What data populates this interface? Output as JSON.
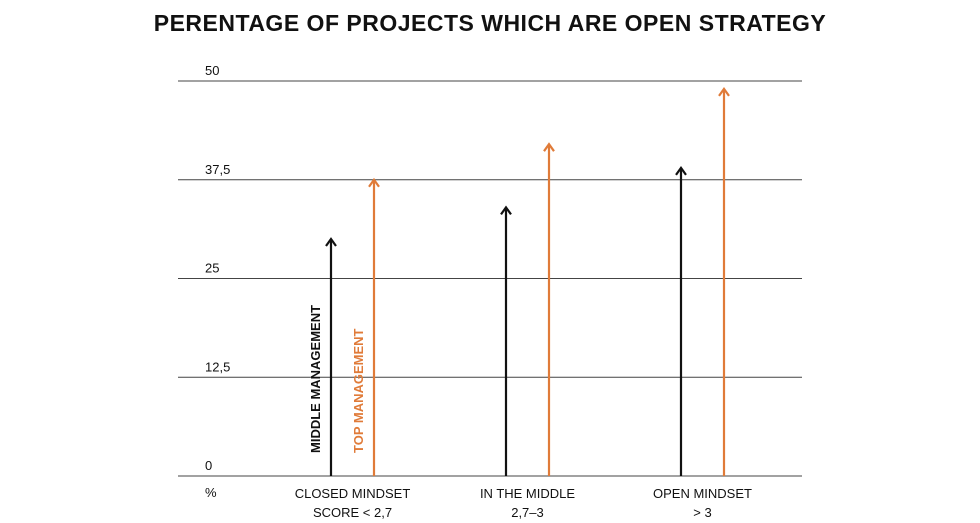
{
  "chart_data": {
    "type": "bar",
    "title": "PERENTAGE OF PROJECTS WHICH ARE OPEN STRATEGY",
    "y_unit_label": "%",
    "ylim": [
      0,
      50
    ],
    "yticks": [
      0,
      12.5,
      25,
      37.5,
      50
    ],
    "ytick_labels": [
      "0",
      "12,5",
      "25",
      "37,5",
      "50"
    ],
    "grid": true,
    "categories": [
      [
        "CLOSED MINDSET",
        "SCORE < 2,7"
      ],
      [
        "IN THE MIDDLE",
        "2,7–3"
      ],
      [
        "OPEN MINDSET",
        "> 3"
      ]
    ],
    "series": [
      {
        "name": "MIDDLE MANAGEMENT",
        "color": "#111111",
        "values": [
          30,
          34,
          39
        ]
      },
      {
        "name": "TOP MANAGEMENT",
        "color": "#e07b39",
        "values": [
          37.5,
          42,
          49
        ]
      }
    ]
  }
}
